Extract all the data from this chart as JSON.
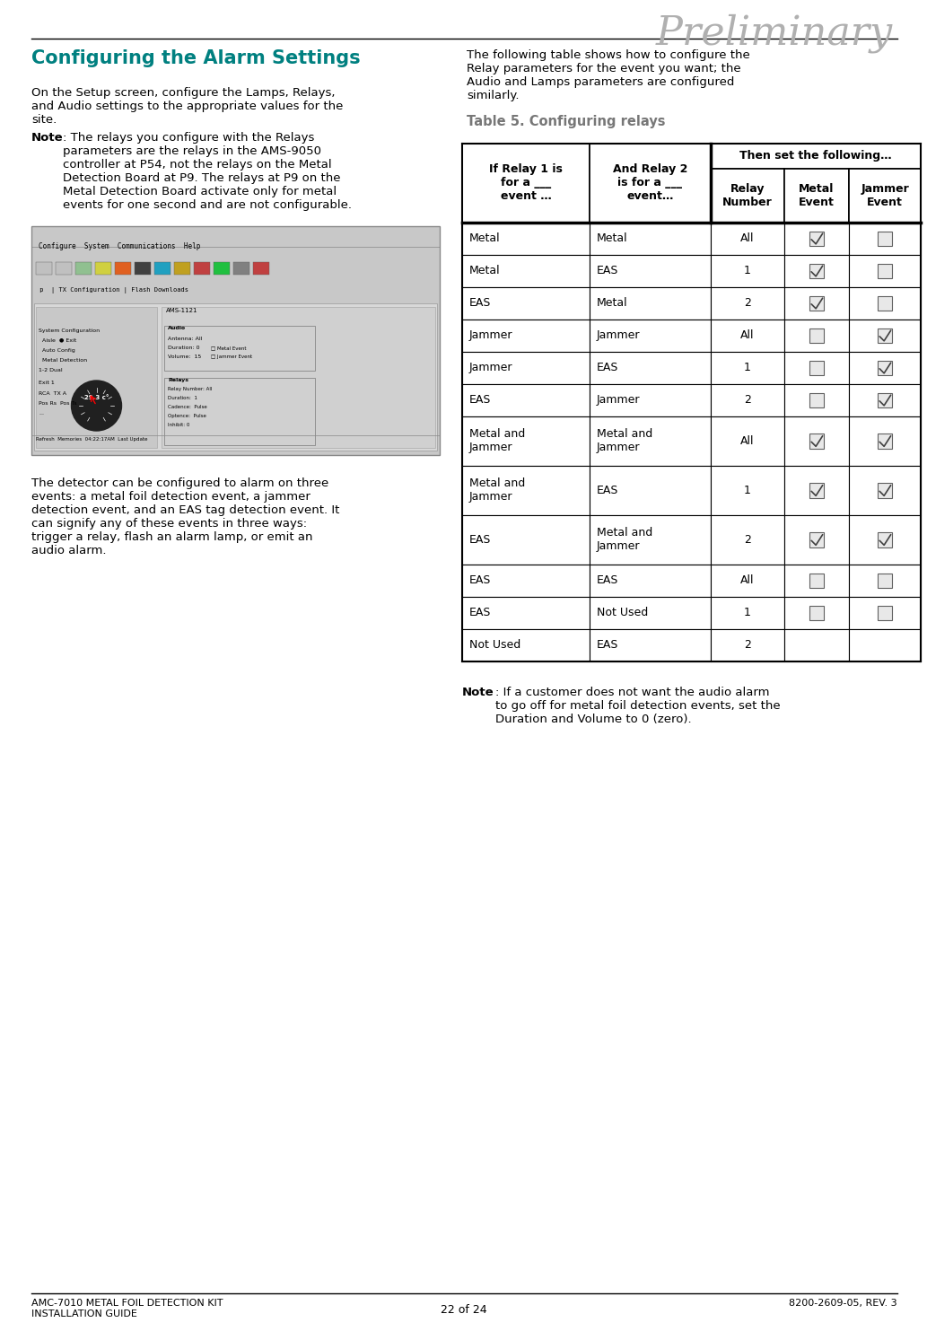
{
  "page_bg": "#ffffff",
  "preliminary_text": "Preliminary",
  "preliminary_color": "#b0b0b0",
  "preliminary_fontsize": 32,
  "title_heading": "Configuring the Alarm Settings",
  "title_color": "#008080",
  "title_fontsize": 15,
  "left_para1": "On the Setup screen, configure the Lamps, Relays,\nand Audio settings to the appropriate values for the\nsite.",
  "left_note_bold": "Note",
  "left_note_rest": ": The relays you configure with the Relays\nparameters are the relays in the AMS-9050\ncontroller at P54, not the relays on the Metal\nDetection Board at P9. The relays at P9 on the\nMetal Detection Board activate only for metal\nevents for one second and are not configurable.",
  "left_para2": "The detector can be configured to alarm on three\nevents: a metal foil detection event, a jammer\ndetection event, and an EAS tag detection event. It\ncan signify any of these events in three ways:\ntrigger a relay, flash an alarm lamp, or emit an\naudio alarm.",
  "right_para1": "The following table shows how to configure the\nRelay parameters for the event you want; the\nAudio and Lamps parameters are configured\nsimilarly.",
  "table_title": "Table 5. Configuring relays",
  "table_title_color": "#777777",
  "then_header": "Then set the following…",
  "col0_header": "If Relay 1 is\nfor a ___\nevent …",
  "col1_header": "And Relay 2\nis for a ___\nevent…",
  "col2_header": "Relay\nNumber",
  "col3_header": "Metal\nEvent",
  "col4_header": "Jammer\nEvent",
  "table_rows": [
    [
      "Metal",
      "Metal",
      "All",
      true,
      false
    ],
    [
      "Metal",
      "EAS",
      "1",
      true,
      false
    ],
    [
      "EAS",
      "Metal",
      "2",
      true,
      false
    ],
    [
      "Jammer",
      "Jammer",
      "All",
      false,
      true
    ],
    [
      "Jammer",
      "EAS",
      "1",
      false,
      true
    ],
    [
      "EAS",
      "Jammer",
      "2",
      false,
      true
    ],
    [
      "Metal and\nJammer",
      "Metal and\nJammer",
      "All",
      true,
      true
    ],
    [
      "Metal and\nJammer",
      "EAS",
      "1",
      true,
      true
    ],
    [
      "EAS",
      "Metal and\nJammer",
      "2",
      true,
      true
    ],
    [
      "EAS",
      "EAS",
      "All",
      false,
      false
    ],
    [
      "EAS",
      "Not Used",
      "1",
      false,
      false
    ],
    [
      "Not Used",
      "EAS",
      "2",
      null,
      null
    ]
  ],
  "note_bottom_bold": "Note",
  "note_bottom_rest": ": If a customer does not want the audio alarm\nto go off for metal foil detection events, set the\nDuration and Volume to 0 (zero).",
  "footer_left1": "AMC-7010 METAL FOIL DETECTION KIT",
  "footer_left2": "INSTALLATION GUIDE",
  "footer_center": "22 of 24",
  "footer_right": "8200-2609-05, REV. 3",
  "body_fontsize": 9.5,
  "table_fontsize": 9.0,
  "header_fontsize": 9.0
}
